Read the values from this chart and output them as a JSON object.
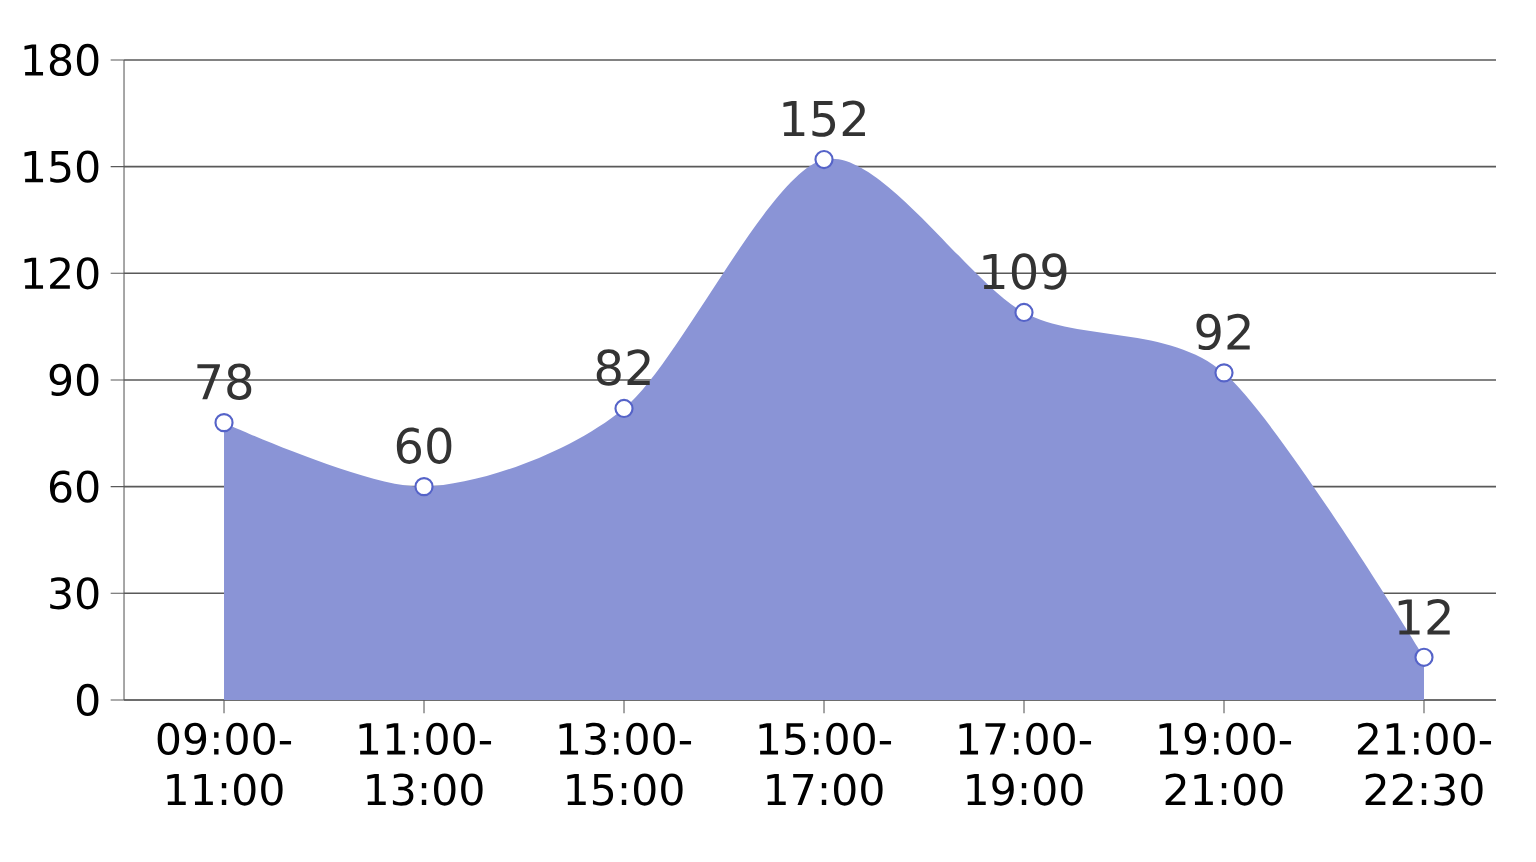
{
  "chart_data": {
    "type": "area",
    "categories": [
      "09:00-11:00",
      "11:00-13:00",
      "13:00-15:00",
      "15:00-17:00",
      "17:00-19:00",
      "19:00-21:00",
      "21:00-22:30"
    ],
    "values": [
      78,
      60,
      82,
      152,
      109,
      92,
      12
    ],
    "color": "#8a94d6",
    "ylim": [
      0,
      180
    ],
    "yticks": [
      0,
      30,
      60,
      90,
      120,
      150,
      180
    ],
    "grid": "y",
    "marker": "circle",
    "data_labels": true
  }
}
